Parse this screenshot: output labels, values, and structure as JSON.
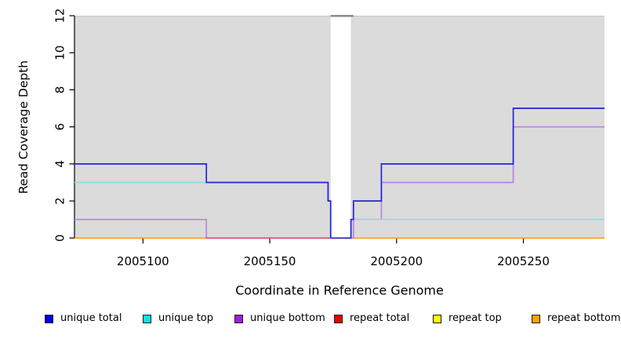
{
  "chart_data": {
    "type": "line",
    "subtype": "step-coverage-plot",
    "title": "",
    "xlabel": "Coordinate in Reference Genome",
    "ylabel": "Read Coverage Depth",
    "xlim": [
      2005073,
      2005282
    ],
    "ylim": [
      0,
      12
    ],
    "x_ticks": [
      2005100,
      2005150,
      2005200,
      2005250
    ],
    "y_ticks": [
      0,
      2,
      4,
      6,
      8,
      10,
      12
    ],
    "grid": "off",
    "background": {
      "page_fill": "#ffffff",
      "plot_fill": "#dbdbdb",
      "plot_top_edge_color": "#c6c6c6",
      "coverage_gap": {
        "x1": 2005174,
        "x2": 2005182
      },
      "gap_top_bar": {
        "x1": 2005174,
        "x2": 2005183,
        "color": "#8f8f8f"
      }
    },
    "axis_color": "#000000",
    "series": [
      {
        "name": "unique total",
        "label": "unique total",
        "line_color": "#2222dd",
        "swatch_color": "#0000ee",
        "steps": [
          [
            2005073,
            4
          ],
          [
            2005125,
            3
          ],
          [
            2005173,
            2
          ],
          [
            2005174,
            0
          ],
          [
            2005182,
            1
          ],
          [
            2005183,
            2
          ],
          [
            2005194,
            4
          ],
          [
            2005246,
            7
          ],
          [
            2005282,
            7
          ]
        ]
      },
      {
        "name": "unique top",
        "label": "unique top",
        "line_color": "#8adde0",
        "swatch_color": "#00e5e5",
        "steps": [
          [
            2005073,
            3
          ],
          [
            2005173,
            2
          ],
          [
            2005174,
            0
          ],
          [
            2005182,
            1
          ],
          [
            2005282,
            1
          ]
        ]
      },
      {
        "name": "unique bottom",
        "label": "unique bottom",
        "line_color": "#b683e4",
        "swatch_color": "#9c20dd",
        "steps": [
          [
            2005073,
            1
          ],
          [
            2005125,
            0
          ],
          [
            2005183,
            1
          ],
          [
            2005194,
            3
          ],
          [
            2005246,
            6
          ],
          [
            2005282,
            6
          ]
        ]
      },
      {
        "name": "repeat total",
        "label": "repeat total",
        "line_color": "#e00000",
        "swatch_color": "#ee0000",
        "steps": [
          [
            2005073,
            0
          ],
          [
            2005282,
            0
          ]
        ]
      },
      {
        "name": "repeat top",
        "label": "repeat top",
        "line_color": "#f5f500",
        "swatch_color": "#ffff00",
        "steps": [
          [
            2005073,
            0
          ],
          [
            2005282,
            0
          ]
        ]
      },
      {
        "name": "repeat bottom",
        "label": "repeat bottom",
        "line_color": "#ffa020",
        "swatch_color": "#ffa500",
        "steps": [
          [
            2005073,
            0
          ],
          [
            2005282,
            0
          ]
        ]
      }
    ],
    "draw_order": [
      "repeat total",
      "repeat top",
      "repeat bottom",
      "unique bottom",
      "unique top",
      "unique total"
    ],
    "overlap_segments": [
      {
        "y": 0,
        "x1": 2005125,
        "x2": 2005174,
        "color": "#d4527c"
      }
    ],
    "legend": {
      "position": "bottom",
      "item_x": [
        57,
        182,
        299,
        426,
        552,
        678
      ]
    }
  }
}
